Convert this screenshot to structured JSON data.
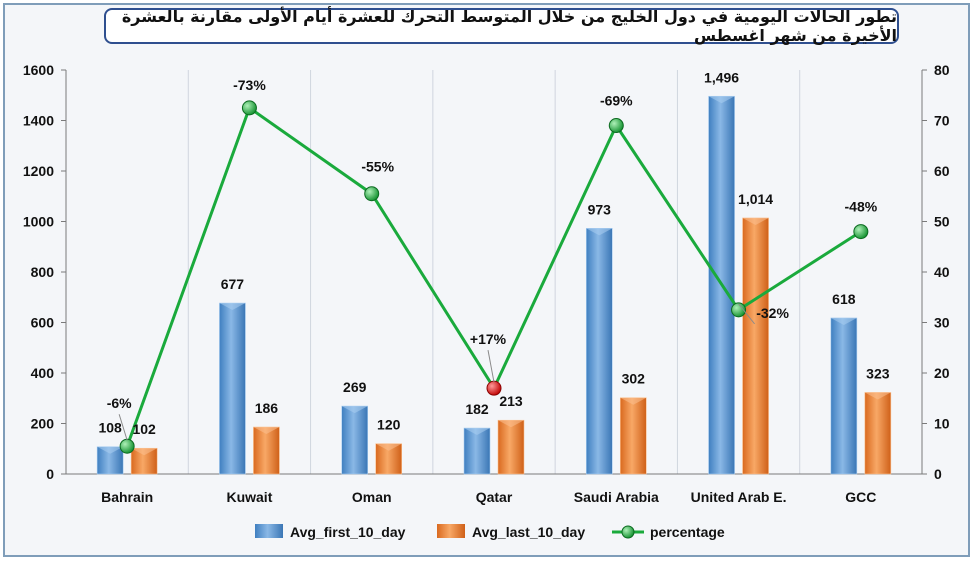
{
  "chart_data": {
    "type": "bar",
    "title": "تطور الحالات اليومية في دول الخليج من خلال المتوسط التحرك للعشرة أيام الأولى مقارنة بالعشرة الأخيرة من شهر اغسطس",
    "categories": [
      "Bahrain",
      "Kuwait",
      "Oman",
      "Qatar",
      "Saudi Arabia",
      "United Arab E.",
      "GCC"
    ],
    "series": [
      {
        "name": "Avg_first_10_day",
        "type": "bar",
        "axis": "left",
        "color": "#5b9bd5",
        "values": [
          108,
          677,
          269,
          182,
          973,
          1496,
          618
        ],
        "labels": [
          "108",
          "677",
          "269",
          "182",
          "973",
          "1,496",
          "618"
        ]
      },
      {
        "name": "Avg_last_10_day",
        "type": "bar",
        "axis": "right_scaled_left",
        "color": "#ed7d31",
        "values": [
          102,
          186,
          120,
          213,
          302,
          1014,
          323
        ],
        "labels": [
          "102",
          "186",
          "120",
          "213",
          "302",
          "1,014",
          "323"
        ]
      },
      {
        "name": "percentage",
        "type": "line",
        "axis": "right",
        "color": "#1aaa3c",
        "values": [
          5.5,
          72.5,
          55.5,
          17,
          69,
          32.5,
          48
        ],
        "labels": [
          "-6%",
          "-73%",
          "-55%",
          "+17%",
          "-69%",
          "-32%",
          "-48%"
        ],
        "highlight_color": "#e02020",
        "highlight_index": 3
      }
    ],
    "y_left": {
      "min": 0,
      "max": 1600,
      "ticks": [
        0,
        200,
        400,
        600,
        800,
        1000,
        1200,
        1400,
        1600
      ]
    },
    "y_right": {
      "min": 0,
      "max": 80,
      "ticks": [
        0,
        10,
        20,
        30,
        40,
        50,
        60,
        70,
        80
      ]
    },
    "grid": "vertical",
    "legend": "bottom"
  }
}
